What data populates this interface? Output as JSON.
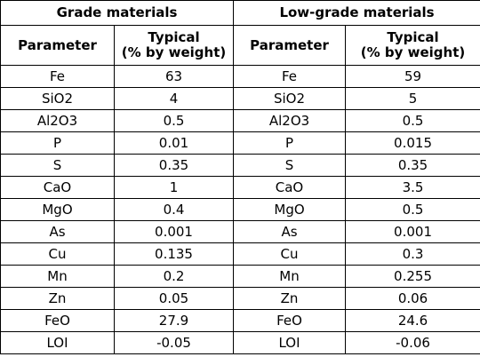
{
  "table": {
    "group_headers": [
      "Grade materials",
      "Low-grade materials"
    ],
    "column_headers": {
      "parameter": "Parameter",
      "typical_line1": "Typical",
      "typical_line2": "(% by weight)"
    },
    "rows": [
      [
        "Fe",
        "63",
        "Fe",
        "59"
      ],
      [
        "SiO2",
        "4",
        "SiO2",
        "5"
      ],
      [
        "Al2O3",
        "0.5",
        "Al2O3",
        "0.5"
      ],
      [
        "P",
        "0.01",
        "P",
        "0.015"
      ],
      [
        "S",
        "0.35",
        "S",
        "0.35"
      ],
      [
        "CaO",
        "1",
        "CaO",
        "3.5"
      ],
      [
        "MgO",
        "0.4",
        "MgO",
        "0.5"
      ],
      [
        "As",
        "0.001",
        "As",
        "0.001"
      ],
      [
        "Cu",
        "0.135",
        "Cu",
        "0.3"
      ],
      [
        "Mn",
        "0.2",
        "Mn",
        "0.255"
      ],
      [
        "Zn",
        "0.05",
        "Zn",
        "0.06"
      ],
      [
        "FeO",
        "27.9",
        "FeO",
        "24.6"
      ],
      [
        "LOI",
        "-0.05",
        "LOI",
        "-0.06"
      ]
    ]
  }
}
